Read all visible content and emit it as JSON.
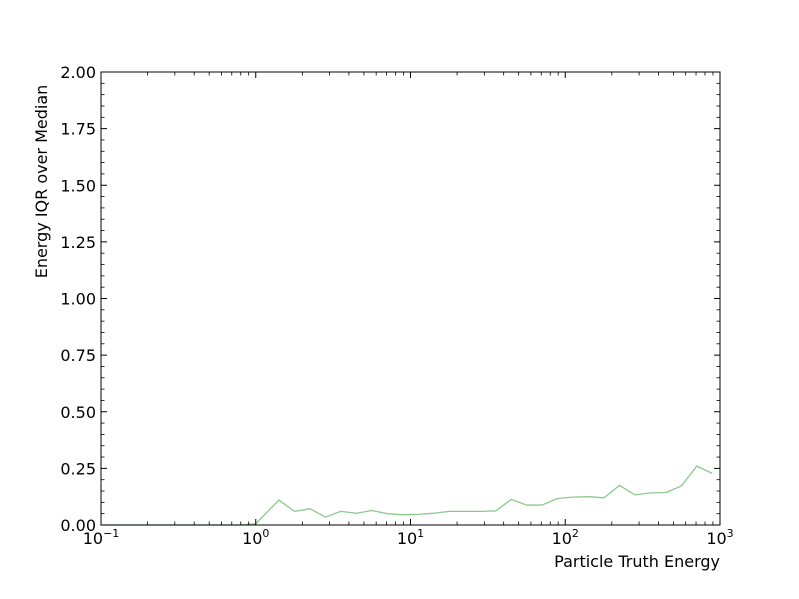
{
  "chart_data": {
    "type": "line",
    "title": "",
    "xlabel": "Particle Truth Energy",
    "ylabel": "Energy IQR over Median",
    "xscale": "log",
    "xlim": [
      0.1,
      1000
    ],
    "ylim": [
      0,
      2.0
    ],
    "grid": false,
    "ticks_direction": "in",
    "x_ticks": [
      {
        "value": 0.1,
        "base": "10",
        "exp": "−1"
      },
      {
        "value": 1,
        "base": "10",
        "exp": "0"
      },
      {
        "value": 10,
        "base": "10",
        "exp": "1"
      },
      {
        "value": 100,
        "base": "10",
        "exp": "2"
      },
      {
        "value": 1000,
        "base": "10",
        "exp": "3"
      }
    ],
    "y_ticks": [
      {
        "value": 0.0,
        "label": "0.00"
      },
      {
        "value": 0.25,
        "label": "0.25"
      },
      {
        "value": 0.5,
        "label": "0.50"
      },
      {
        "value": 0.75,
        "label": "0.75"
      },
      {
        "value": 1.0,
        "label": "1.00"
      },
      {
        "value": 1.25,
        "label": "1.25"
      },
      {
        "value": 1.5,
        "label": "1.50"
      },
      {
        "value": 1.75,
        "label": "1.75"
      },
      {
        "value": 2.0,
        "label": "2.00"
      }
    ],
    "series": [
      {
        "color": "#8cc88c",
        "x": [
          0.1,
          0.126,
          0.158,
          0.2,
          0.251,
          0.316,
          0.398,
          0.501,
          0.631,
          0.794,
          1.0,
          1.12,
          1.41,
          1.78,
          2.24,
          2.82,
          3.55,
          4.47,
          5.62,
          7.08,
          8.91,
          11.2,
          14.1,
          17.8,
          22.4,
          28.2,
          35.5,
          44.7,
          56.2,
          70.8,
          89.1,
          112,
          141,
          178,
          224,
          282,
          355,
          447,
          562,
          708,
          891
        ],
        "y": [
          0,
          0,
          0,
          0,
          0,
          0,
          0,
          0,
          0,
          0,
          0.005,
          0.04,
          0.11,
          0.06,
          0.072,
          0.035,
          0.06,
          0.052,
          0.064,
          0.05,
          0.045,
          0.047,
          0.052,
          0.06,
          0.06,
          0.06,
          0.062,
          0.113,
          0.088,
          0.088,
          0.117,
          0.123,
          0.125,
          0.12,
          0.175,
          0.133,
          0.142,
          0.143,
          0.172,
          0.26,
          0.228
        ]
      }
    ]
  }
}
